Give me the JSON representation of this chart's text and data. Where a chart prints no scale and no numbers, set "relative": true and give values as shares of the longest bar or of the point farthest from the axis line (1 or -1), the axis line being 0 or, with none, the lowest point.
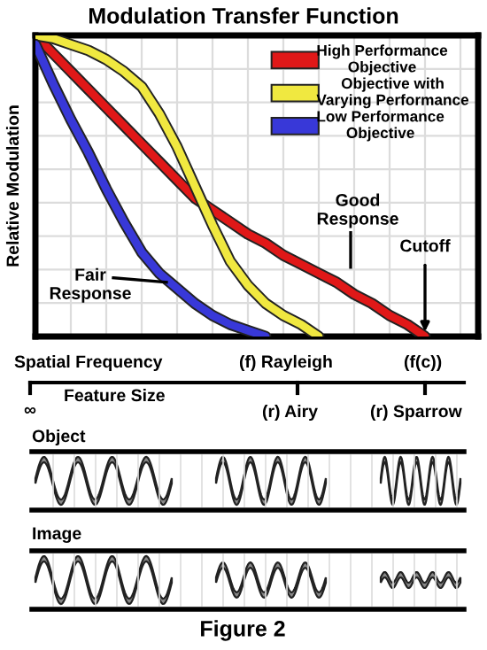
{
  "chart_data": {
    "type": "line",
    "title": "Modulation Transfer Function",
    "ylabel": "Relative Modulation",
    "relative": true,
    "grid": true,
    "legend": "top right",
    "categories": [
      null,
      null,
      null,
      null,
      null,
      null,
      null,
      null,
      null,
      null,
      null,
      null,
      null,
      null,
      null,
      null,
      null,
      null,
      null,
      null,
      null,
      null,
      null,
      null,
      null,
      null
    ],
    "series": [
      {
        "name": "High Performance Objective",
        "color": "#e01818",
        "values": [
          1.0,
          0.94,
          0.88,
          0.82,
          0.76,
          0.7,
          0.64,
          0.58,
          0.52,
          0.46,
          0.42,
          0.38,
          0.34,
          0.31,
          0.27,
          0.24,
          0.21,
          0.18,
          0.14,
          0.11,
          0.07,
          0.04,
          0.0,
          null,
          null,
          null
        ]
      },
      {
        "name": "Objective with Varying Performance",
        "color": "#f0e840",
        "values": [
          1.0,
          0.99,
          0.97,
          0.95,
          0.92,
          0.88,
          0.83,
          0.74,
          0.63,
          0.5,
          0.37,
          0.25,
          0.17,
          0.11,
          0.07,
          0.04,
          0.0,
          null,
          null,
          null,
          null,
          null,
          null,
          null,
          null,
          null
        ]
      },
      {
        "name": "Low Performance Objective",
        "color": "#3838d8",
        "values": [
          0.97,
          0.84,
          0.72,
          0.61,
          0.49,
          0.38,
          0.28,
          0.21,
          0.16,
          0.11,
          0.07,
          0.04,
          0.02,
          0.0,
          null,
          null,
          null,
          null,
          null,
          null,
          null,
          null,
          null,
          null,
          null,
          null
        ]
      }
    ],
    "annotations": [
      "Good Response",
      "Fair Response",
      "Cutoff",
      "Spatial Frequency",
      "(f) Rayleigh",
      "(f(c))",
      "∞",
      "Feature Size",
      "(r) Airy",
      "(r) Sparrow",
      "Object",
      "Image",
      "Figure 2"
    ]
  }
}
